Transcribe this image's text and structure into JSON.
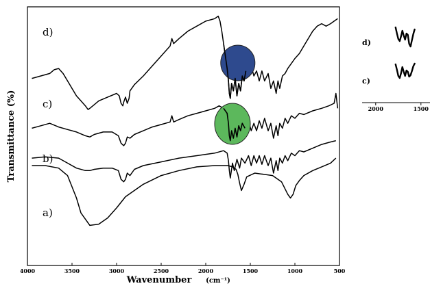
{
  "chart_data": [
    {
      "type": "line",
      "title": "",
      "xlabel": "Wavenumber",
      "xunit": "(cm⁻¹)",
      "ylabel": "Transmittance (%)",
      "x_reversed": true,
      "xlim": [
        4000,
        500
      ],
      "xticks": [
        "4000",
        "3500",
        "3000",
        "2500",
        "2000",
        "1500",
        "1000",
        "500"
      ],
      "y_scale": "arbitrary (offset traces)",
      "series": [
        {
          "name": "a)",
          "x": [
            3950,
            3800,
            3650,
            3550,
            3450,
            3400,
            3350,
            3300,
            3200,
            3100,
            3000,
            2900,
            2700,
            2500,
            2300,
            2100,
            1900,
            1750,
            1700,
            1660,
            1640,
            1620,
            1600,
            1570,
            1540,
            1450,
            1350,
            1250,
            1150,
            1080,
            1050,
            1020,
            990,
            950,
            900,
            800,
            700,
            600,
            540
          ],
          "y": [
            78,
            78,
            76,
            70,
            52,
            40,
            35,
            30,
            31,
            36,
            44,
            53,
            63,
            70,
            74,
            77,
            78,
            78,
            77,
            75,
            71,
            64,
            58,
            63,
            69,
            72,
            71,
            70,
            65,
            55,
            52,
            55,
            62,
            66,
            70,
            74,
            77,
            80,
            84
          ]
        },
        {
          "name": "b)",
          "x": [
            3950,
            3800,
            3650,
            3550,
            3450,
            3350,
            3300,
            3250,
            3150,
            3050,
            2980,
            2950,
            2920,
            2900,
            2880,
            2850,
            2800,
            2700,
            2500,
            2300,
            2100,
            1900,
            1800,
            1760,
            1745,
            1735,
            1725,
            1700,
            1680,
            1650,
            1620,
            1600,
            1560,
            1520,
            1490,
            1460,
            1430,
            1400,
            1370,
            1340,
            1300,
            1270,
            1240,
            1210,
            1190,
            1170,
            1140,
            1110,
            1080,
            1040,
            1000,
            950,
            900,
            800,
            700,
            600,
            540
          ],
          "y": [
            84,
            85,
            84,
            80,
            76,
            74,
            74,
            75,
            76,
            76,
            74,
            67,
            65,
            67,
            72,
            70,
            75,
            78,
            81,
            84,
            86,
            88,
            90,
            88,
            82,
            74,
            68,
            80,
            74,
            83,
            76,
            84,
            80,
            86,
            78,
            86,
            80,
            86,
            79,
            86,
            78,
            84,
            72,
            82,
            74,
            84,
            80,
            86,
            82,
            88,
            86,
            90,
            89,
            92,
            95,
            97,
            98
          ]
        },
        {
          "name": "c)",
          "x": [
            3950,
            3850,
            3750,
            3650,
            3550,
            3450,
            3350,
            3300,
            3250,
            3150,
            3050,
            2980,
            2950,
            2920,
            2900,
            2880,
            2850,
            2800,
            2700,
            2600,
            2500,
            2400,
            2380,
            2360,
            2300,
            2200,
            2100,
            2000,
            1900,
            1850,
            1800,
            1760,
            1745,
            1735,
            1725,
            1710,
            1690,
            1670,
            1650,
            1630,
            1610,
            1590,
            1560,
            1520,
            1490,
            1460,
            1430,
            1400,
            1370,
            1340,
            1300,
            1270,
            1240,
            1210,
            1190,
            1170,
            1140,
            1110,
            1080,
            1040,
            1000,
            950,
            900,
            800,
            700,
            620,
            560,
            540,
            520
          ],
          "y": [
            108,
            110,
            112,
            109,
            107,
            105,
            102,
            101,
            103,
            105,
            105,
            102,
            96,
            94,
            96,
            101,
            100,
            103,
            106,
            109,
            111,
            113,
            118,
            113,
            115,
            118,
            120,
            122,
            124,
            126,
            124,
            120,
            112,
            102,
            98,
            106,
            100,
            108,
            101,
            110,
            106,
            112,
            108,
            114,
            106,
            112,
            106,
            114,
            108,
            116,
            106,
            112,
            100,
            110,
            102,
            112,
            108,
            116,
            112,
            118,
            116,
            120,
            119,
            122,
            124,
            126,
            128,
            136,
            124
          ]
        },
        {
          "name": "d)",
          "x": [
            3950,
            3850,
            3750,
            3700,
            3650,
            3600,
            3550,
            3500,
            3450,
            3400,
            3350,
            3320,
            3300,
            3250,
            3200,
            3100,
            3000,
            2970,
            2950,
            2930,
            2920,
            2900,
            2880,
            2860,
            2850,
            2800,
            2700,
            2600,
            2500,
            2400,
            2380,
            2360,
            2300,
            2200,
            2100,
            2000,
            1900,
            1860,
            1840,
            1820,
            1800,
            1780,
            1760,
            1745,
            1735,
            1725,
            1710,
            1690,
            1670,
            1650,
            1630,
            1610,
            1590,
            1570,
            1550,
            1520,
            1490,
            1460,
            1430,
            1400,
            1370,
            1340,
            1300,
            1270,
            1240,
            1210,
            1190,
            1170,
            1140,
            1110,
            1080,
            1040,
            1000,
            950,
            900,
            850,
            800,
            750,
            700,
            650,
            600,
            560,
            520
          ],
          "y": [
            148,
            150,
            152,
            155,
            156,
            152,
            146,
            140,
            134,
            130,
            126,
            123,
            124,
            127,
            130,
            133,
            136,
            134,
            128,
            126,
            129,
            133,
            128,
            132,
            138,
            143,
            150,
            158,
            166,
            174,
            180,
            176,
            180,
            186,
            190,
            194,
            196,
            198,
            194,
            186,
            176,
            166,
            156,
            146,
            136,
            132,
            144,
            138,
            148,
            134,
            144,
            138,
            150,
            146,
            154,
            150,
            158,
            150,
            154,
            146,
            154,
            146,
            152,
            140,
            146,
            136,
            146,
            140,
            150,
            152,
            156,
            160,
            164,
            168,
            174,
            180,
            186,
            190,
            192,
            190,
            192,
            194,
            196
          ]
        }
      ],
      "annotations": [
        {
          "type": "ellipse",
          "near_trace": "d)",
          "center_x": 1640,
          "color": "#2e4a8e"
        },
        {
          "type": "ellipse",
          "near_trace": "c)",
          "center_x": 1700,
          "color": "#5cb85c"
        }
      ]
    },
    {
      "type": "line",
      "title": "",
      "xlabel": "",
      "ylabel": "",
      "x_reversed": true,
      "xlim": [
        2150,
        1400
      ],
      "xticks": [
        "2000",
        "1500"
      ],
      "series": [
        {
          "name": "d)",
          "x": [
            1780,
            1765,
            1750,
            1735,
            1720,
            1705,
            1690,
            1675,
            1660,
            1645,
            1630,
            1615,
            1600,
            1585,
            1570
          ],
          "y": [
            96,
            78,
            62,
            56,
            70,
            86,
            72,
            60,
            78,
            74,
            48,
            40,
            58,
            76,
            90
          ]
        },
        {
          "name": "c)",
          "x": [
            1780,
            1765,
            1750,
            1735,
            1720,
            1705,
            1690,
            1675,
            1660,
            1645,
            1630,
            1615,
            1600,
            1585,
            1570
          ],
          "y": [
            92,
            76,
            58,
            52,
            66,
            84,
            70,
            58,
            74,
            70,
            56,
            60,
            72,
            86,
            94
          ]
        }
      ]
    }
  ]
}
